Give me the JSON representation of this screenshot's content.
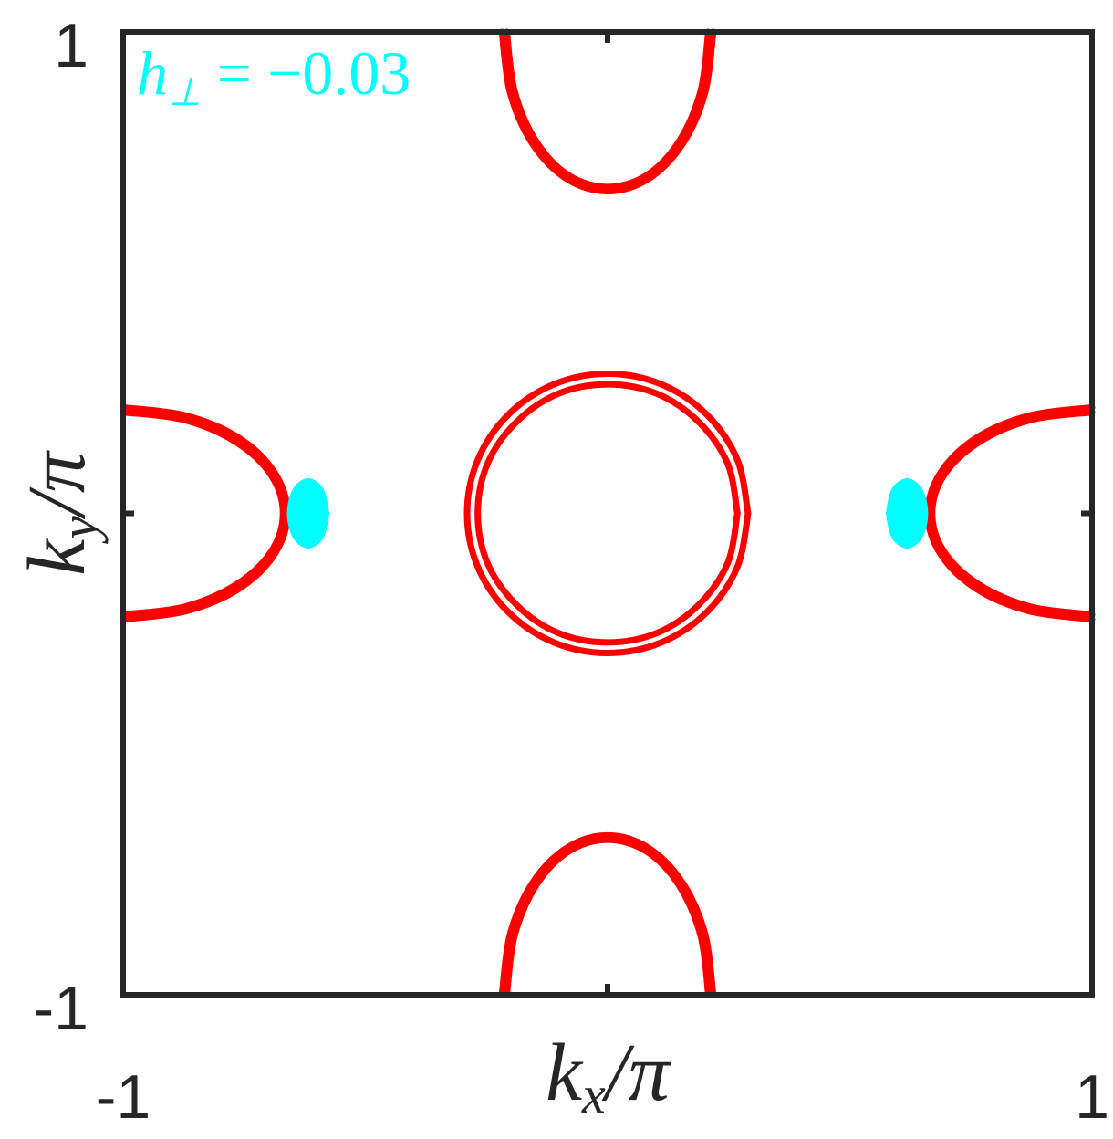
{
  "chart_data": {
    "type": "line",
    "annotation": {
      "symbol": "h",
      "subscript": "⊥",
      "rest": " = −0.03"
    },
    "xlabel": {
      "symbol": "k",
      "subscript": "x",
      "rest": "/π"
    },
    "ylabel": {
      "symbol": "k",
      "subscript": "y",
      "rest": "/π"
    },
    "xlim": [
      -1,
      1
    ],
    "ylim": [
      -1,
      1
    ],
    "xticks": [
      -1,
      {
        "value": 0,
        "label": null
      },
      1
    ],
    "yticks": [
      -1,
      {
        "value": 0,
        "label": null
      },
      1
    ],
    "series": [
      {
        "color": "#ff0000",
        "x": [
          -0.218,
          -0.201,
          -0.154,
          -0.083,
          0,
          0.083,
          0.154,
          0.201,
          0.218
        ],
        "y": [
          1,
          0.873,
          0.766,
          0.694,
          0.669,
          0.694,
          0.766,
          0.873,
          1
        ]
      },
      {
        "color": "#ff0000",
        "x": [
          -0.208,
          -0.192,
          -0.147,
          -0.08,
          0,
          0.08,
          0.147,
          0.192,
          0.208
        ],
        "y": [
          1,
          0.877,
          0.772,
          0.702,
          0.678,
          0.702,
          0.772,
          0.877,
          1
        ]
      },
      {
        "color": "#ff0000",
        "x": [
          -0.218,
          -0.201,
          -0.154,
          -0.083,
          0,
          0.083,
          0.154,
          0.201,
          0.218
        ],
        "y": [
          -1,
          -0.873,
          -0.766,
          -0.694,
          -0.669,
          -0.694,
          -0.766,
          -0.873,
          -1
        ]
      },
      {
        "color": "#ff0000",
        "x": [
          -0.208,
          -0.192,
          -0.147,
          -0.08,
          0,
          0.08,
          0.147,
          0.192,
          0.208
        ],
        "y": [
          -1,
          -0.877,
          -0.772,
          -0.702,
          -0.678,
          -0.702,
          -0.772,
          -0.877,
          -1
        ]
      },
      {
        "color": "#ff0000",
        "x": [
          -1,
          -0.87,
          -0.76,
          -0.687,
          -0.661,
          -0.687,
          -0.76,
          -0.87,
          -1
        ],
        "y": [
          0.22,
          0.203,
          0.156,
          0.084,
          0,
          -0.084,
          -0.156,
          -0.203,
          -0.22
        ]
      },
      {
        "color": "#ff0000",
        "x": [
          -1,
          -0.874,
          -0.767,
          -0.695,
          -0.67,
          -0.695,
          -0.767,
          -0.874,
          -1
        ],
        "y": [
          0.21,
          0.194,
          0.148,
          0.08,
          0,
          -0.08,
          -0.148,
          -0.194,
          -0.21
        ]
      },
      {
        "color": "#ff0000",
        "x": [
          1,
          0.87,
          0.76,
          0.687,
          0.661,
          0.687,
          0.76,
          0.87,
          1
        ],
        "y": [
          0.22,
          0.203,
          0.156,
          0.084,
          0,
          -0.084,
          -0.156,
          -0.203,
          -0.22
        ]
      },
      {
        "color": "#ff0000",
        "x": [
          1,
          0.874,
          0.767,
          0.695,
          0.67,
          0.695,
          0.767,
          0.874,
          1
        ],
        "y": [
          0.21,
          0.194,
          0.148,
          0.08,
          0,
          -0.08,
          -0.148,
          -0.194,
          -0.21
        ]
      },
      {
        "color": "#ff0000",
        "x": [
          0.29,
          0.268,
          0.205,
          0.111,
          0,
          -0.111,
          -0.205,
          -0.268,
          -0.29,
          -0.268,
          -0.205,
          -0.111,
          0,
          0.111,
          0.205,
          0.268,
          0.29
        ],
        "y": [
          0,
          0.111,
          0.205,
          0.268,
          0.29,
          0.268,
          0.205,
          0.111,
          0,
          -0.111,
          -0.205,
          -0.268,
          -0.29,
          -0.268,
          -0.205,
          -0.111,
          0
        ]
      },
      {
        "color": "#ff0000",
        "x": [
          0.268,
          0.248,
          0.189,
          0.103,
          0,
          -0.103,
          -0.189,
          -0.248,
          -0.268,
          -0.248,
          -0.189,
          -0.103,
          0,
          0.103,
          0.189,
          0.248,
          0.268
        ],
        "y": [
          0,
          0.103,
          0.189,
          0.248,
          0.268,
          0.248,
          0.189,
          0.103,
          0,
          -0.103,
          -0.189,
          -0.248,
          -0.268,
          -0.248,
          -0.189,
          -0.103,
          0
        ]
      },
      {
        "color": "#00ffff",
        "filled": true,
        "x": [
          -0.576,
          -0.588,
          -0.618,
          -0.648,
          -0.66,
          -0.648,
          -0.618,
          -0.588,
          -0.576
        ],
        "y": [
          0,
          0.05,
          0.071,
          0.05,
          0,
          -0.05,
          -0.071,
          -0.05,
          0
        ]
      },
      {
        "color": "#00ffff",
        "filled": true,
        "x": [
          0.576,
          0.588,
          0.618,
          0.648,
          0.66,
          0.648,
          0.618,
          0.588,
          0.576
        ],
        "y": [
          0,
          0.05,
          0.071,
          0.05,
          0,
          -0.05,
          -0.071,
          -0.05,
          0
        ]
      }
    ]
  }
}
